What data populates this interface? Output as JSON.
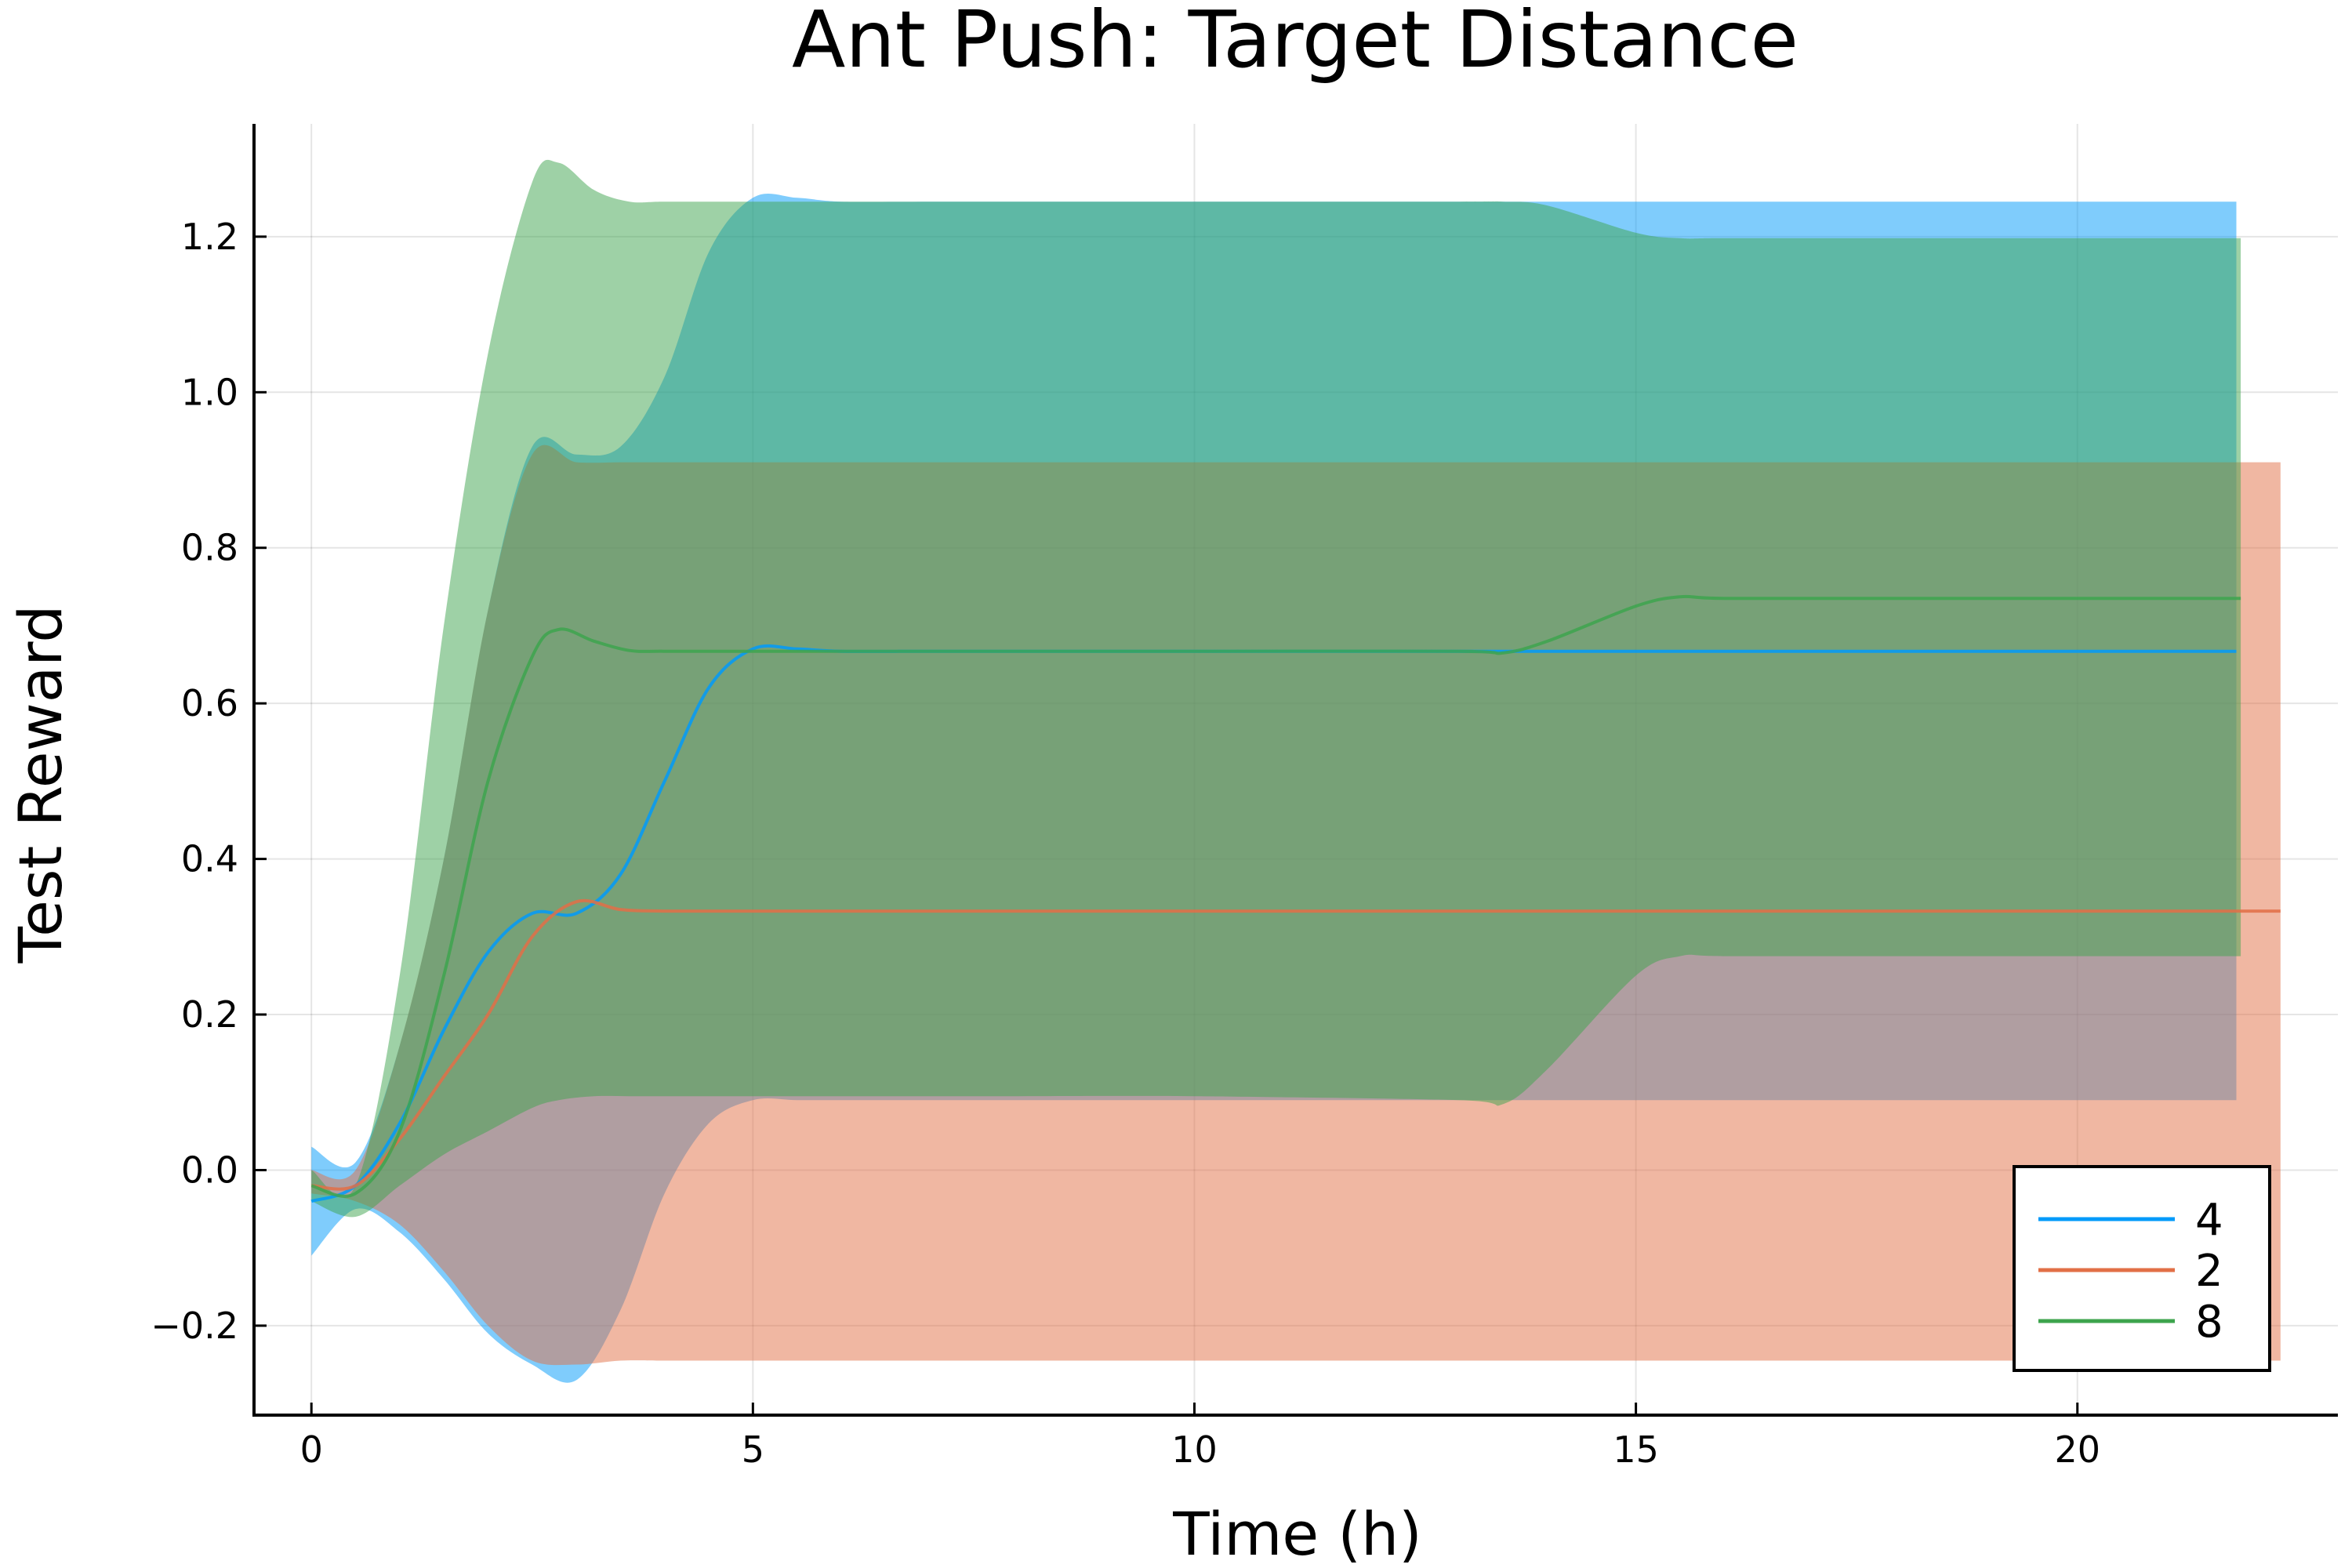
{
  "chart_data": {
    "type": "line",
    "title": "Ant Push: Target Distance",
    "xlabel": "Time (h)",
    "ylabel": "Test Reward",
    "xlim": [
      -0.65,
      22.95
    ],
    "ylim": [
      -0.315,
      1.345
    ],
    "xticks": [
      0,
      5,
      10,
      15,
      20
    ],
    "xtick_labels": [
      "0",
      "5",
      "10",
      "15",
      "20"
    ],
    "yticks": [
      -0.2,
      0.0,
      0.2,
      0.4,
      0.6,
      0.8,
      1.0,
      1.2
    ],
    "ytick_labels": [
      "−0.2",
      "0.0",
      "0.2",
      "0.4",
      "0.6",
      "0.8",
      "1.0",
      "1.2"
    ],
    "grid": true,
    "legend_position": "bottom-right",
    "series": [
      {
        "name": "4",
        "color": "#009AFA",
        "band_opacity": 0.5,
        "x": [
          0,
          0.5,
          1,
          1.5,
          2,
          2.5,
          3,
          3.5,
          4,
          4.5,
          5,
          5.5,
          6,
          7,
          8,
          10,
          13,
          15,
          17,
          20,
          21.8
        ],
        "mean": [
          -0.04,
          -0.02,
          0.06,
          0.18,
          0.28,
          0.33,
          0.33,
          0.38,
          0.5,
          0.62,
          0.67,
          0.67,
          0.667,
          0.667,
          0.667,
          0.667,
          0.667,
          0.667,
          0.667,
          0.667,
          0.667
        ],
        "upper": [
          0.03,
          0.01,
          0.16,
          0.4,
          0.72,
          0.93,
          0.92,
          0.93,
          1.02,
          1.18,
          1.25,
          1.25,
          1.245,
          1.245,
          1.245,
          1.245,
          1.245,
          1.245,
          1.245,
          1.245,
          1.245
        ],
        "lower": [
          -0.11,
          -0.05,
          -0.08,
          -0.14,
          -0.21,
          -0.25,
          -0.27,
          -0.18,
          -0.03,
          0.06,
          0.09,
          0.09,
          0.09,
          0.09,
          0.09,
          0.09,
          0.09,
          0.09,
          0.09,
          0.09,
          0.09
        ]
      },
      {
        "name": "2",
        "color": "#E26F46",
        "band_opacity": 0.5,
        "x": [
          0,
          0.5,
          1,
          1.5,
          2,
          2.5,
          3,
          3.5,
          4,
          5,
          6,
          8,
          10,
          13,
          15,
          17,
          20,
          22.3
        ],
        "mean": [
          -0.02,
          -0.02,
          0.04,
          0.12,
          0.2,
          0.3,
          0.345,
          0.335,
          0.333,
          0.333,
          0.333,
          0.333,
          0.333,
          0.333,
          0.333,
          0.333,
          0.333,
          0.333
        ],
        "upper": [
          0.0,
          0.0,
          0.16,
          0.4,
          0.72,
          0.92,
          0.91,
          0.91,
          0.91,
          0.91,
          0.91,
          0.91,
          0.91,
          0.91,
          0.91,
          0.91,
          0.91,
          0.91
        ],
        "lower": [
          -0.03,
          -0.04,
          -0.07,
          -0.13,
          -0.2,
          -0.245,
          -0.25,
          -0.245,
          -0.245,
          -0.245,
          -0.245,
          -0.245,
          -0.245,
          -0.245,
          -0.245,
          -0.245,
          -0.245,
          -0.245
        ]
      },
      {
        "name": "8",
        "color": "#3DA44D",
        "band_opacity": 0.5,
        "x": [
          0,
          0.5,
          1,
          1.5,
          2,
          2.5,
          2.8,
          3.2,
          3.6,
          4,
          5,
          6,
          8,
          10,
          13,
          13.5,
          14,
          15,
          15.5,
          16,
          18,
          20,
          21.85
        ],
        "mean": [
          -0.02,
          -0.03,
          0.05,
          0.25,
          0.5,
          0.66,
          0.695,
          0.68,
          0.668,
          0.667,
          0.667,
          0.667,
          0.667,
          0.667,
          0.667,
          0.665,
          0.68,
          0.725,
          0.737,
          0.735,
          0.735,
          0.735,
          0.735
        ],
        "upper": [
          0.0,
          -0.02,
          0.25,
          0.7,
          1.05,
          1.27,
          1.295,
          1.26,
          1.245,
          1.245,
          1.245,
          1.245,
          1.245,
          1.245,
          1.245,
          1.245,
          1.24,
          1.205,
          1.198,
          1.198,
          1.198,
          1.198,
          1.198
        ],
        "lower": [
          -0.04,
          -0.06,
          -0.02,
          0.02,
          0.05,
          0.08,
          0.09,
          0.095,
          0.095,
          0.095,
          0.095,
          0.095,
          0.095,
          0.095,
          0.09,
          0.085,
          0.13,
          0.25,
          0.275,
          0.275,
          0.275,
          0.275,
          0.275
        ]
      }
    ]
  }
}
